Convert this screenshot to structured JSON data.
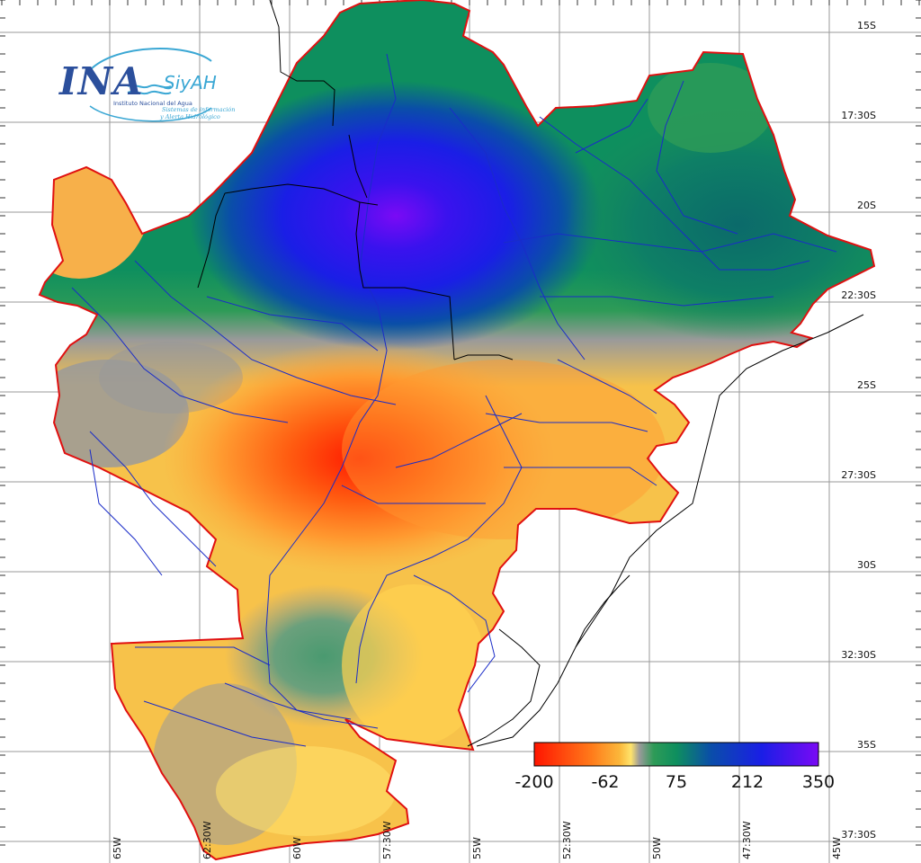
{
  "logo": {
    "name": "INA",
    "system": "SiyAH",
    "institution": "Instituto Nacional del Agua",
    "tagline_1": "Sistemas de información",
    "tagline_2": "y Alerta Hidrológico"
  },
  "latitude_labels": [
    "15S",
    "17:30S",
    "20S",
    "22:30S",
    "25S",
    "27:30S",
    "30S",
    "32:30S",
    "35S",
    "37:30S"
  ],
  "longitude_labels": [
    "65W",
    "62:30W",
    "60W",
    "57:30W",
    "55W",
    "52:30W",
    "50W",
    "47:30W",
    "45W"
  ],
  "colorbar": {
    "tick_labels": [
      "-200",
      "-62",
      "75",
      "212",
      "350"
    ],
    "colors": [
      "#ff1500",
      "#ff7a1a",
      "#fbb73a",
      "#ffe36b",
      "#9a9a9a",
      "#2e9b57",
      "#0e8f5e",
      "#0a4ea8",
      "#1a1ee6",
      "#7a0af5"
    ]
  },
  "colors": {
    "boundary": "#e01010",
    "rivers": "#1a2cc8",
    "borders": "#000000",
    "grid": "#9a9a9a"
  }
}
